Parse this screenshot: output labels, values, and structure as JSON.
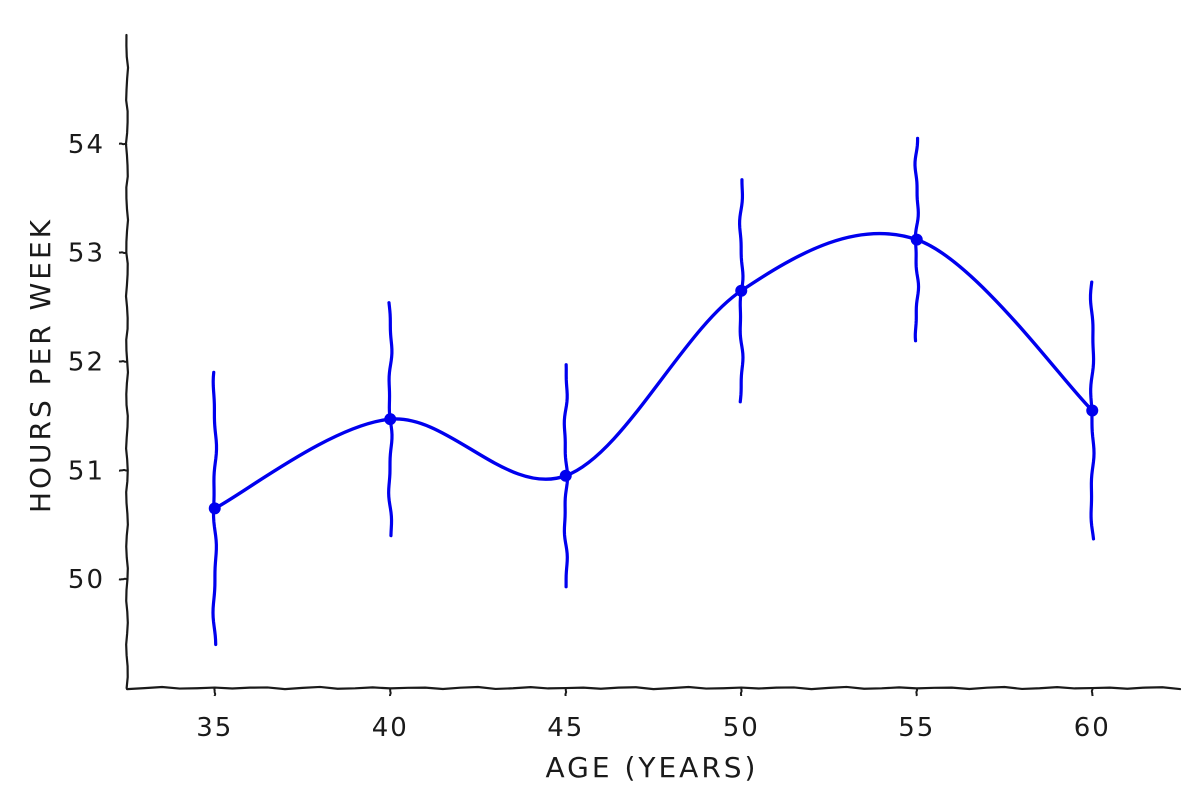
{
  "chart_data": {
    "type": "line",
    "title": "",
    "xlabel": "AGE (YEARS)",
    "ylabel": "HOURS PER WEEK",
    "x": [
      35,
      40,
      45,
      50,
      55,
      60
    ],
    "series": [
      {
        "values": [
          50.65,
          51.47,
          50.95,
          52.65,
          53.12,
          51.55
        ],
        "error": [
          1.25,
          1.07,
          1.02,
          1.02,
          0.93,
          1.18
        ]
      }
    ],
    "xticks": [
      "35",
      "40",
      "45",
      "50",
      "55",
      "60"
    ],
    "yticks": [
      "50",
      "51",
      "52",
      "53",
      "54"
    ],
    "xlim": [
      32.5,
      62.5
    ],
    "ylim": [
      49.0,
      55.0
    ],
    "grid": false,
    "color": "#0000ee"
  }
}
